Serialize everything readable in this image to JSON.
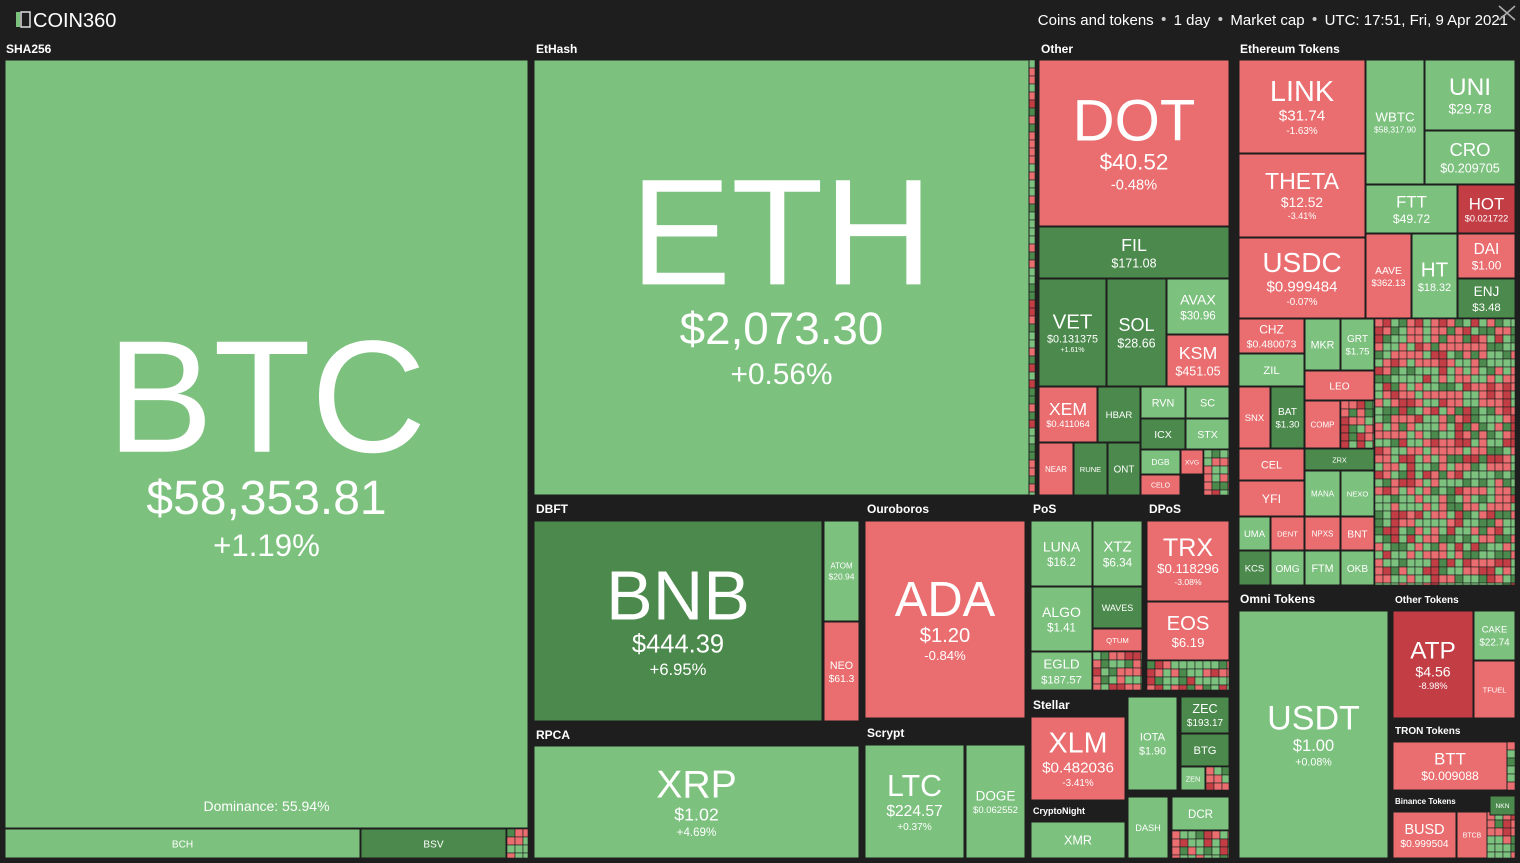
{
  "header": {
    "logo": "COIN360",
    "items": [
      "Coins and tokens",
      "1 day",
      "Market cap",
      "UTC: 17:51, Fri, 9 Apr 2021"
    ]
  },
  "groups": [
    {
      "name": "SHA256",
      "tiles": [
        {
          "symbol": "BTC",
          "price": "$58,353.81",
          "change": "+1.19%",
          "note": "Dominance: 55.94%"
        },
        {
          "symbol": "BCH"
        },
        {
          "symbol": "BSV"
        }
      ]
    },
    {
      "name": "EtHash",
      "tiles": [
        {
          "symbol": "ETH",
          "price": "$2,073.30",
          "change": "+0.56%"
        }
      ]
    },
    {
      "name": "Other",
      "tiles": [
        {
          "symbol": "DOT",
          "price": "$40.52",
          "change": "-0.48%"
        },
        {
          "symbol": "FIL",
          "price": "$171.08"
        },
        {
          "symbol": "VET",
          "price": "$0.131375",
          "change": "+1.61%"
        },
        {
          "symbol": "SOL",
          "price": "$28.66"
        },
        {
          "symbol": "AVAX",
          "price": "$30.96"
        },
        {
          "symbol": "KSM",
          "price": "$451.05"
        },
        {
          "symbol": "XEM",
          "price": "$0.411064"
        },
        {
          "symbol": "HBAR"
        },
        {
          "symbol": "RVN"
        },
        {
          "symbol": "SC"
        },
        {
          "symbol": "ICX"
        },
        {
          "symbol": "STX"
        },
        {
          "symbol": "NEAR"
        },
        {
          "symbol": "RUNE"
        },
        {
          "symbol": "ONT"
        },
        {
          "symbol": "DGB"
        },
        {
          "symbol": "XVG"
        },
        {
          "symbol": "CELO"
        }
      ]
    },
    {
      "name": "Ethereum Tokens",
      "tiles": [
        {
          "symbol": "LINK",
          "price": "$31.74",
          "change": "-1.63%"
        },
        {
          "symbol": "WBTC",
          "price": "$58,317.90"
        },
        {
          "symbol": "UNI",
          "price": "$29.78"
        },
        {
          "symbol": "CRO",
          "price": "$0.209705"
        },
        {
          "symbol": "THETA",
          "price": "$12.52",
          "change": "-3.41%"
        },
        {
          "symbol": "FTT",
          "price": "$49.72"
        },
        {
          "symbol": "HOT",
          "price": "$0.021722"
        },
        {
          "symbol": "AAVE",
          "price": "$362.13"
        },
        {
          "symbol": "HT",
          "price": "$18.32"
        },
        {
          "symbol": "DAI",
          "price": "$1.00"
        },
        {
          "symbol": "ENJ",
          "price": "$3.48"
        },
        {
          "symbol": "USDC",
          "price": "$0.999484",
          "change": "-0.07%"
        },
        {
          "symbol": "CHZ",
          "price": "$0.480073"
        },
        {
          "symbol": "ZIL"
        },
        {
          "symbol": "MKR"
        },
        {
          "symbol": "GRT",
          "price": "$1.75"
        },
        {
          "symbol": "LEO"
        },
        {
          "symbol": "SNX"
        },
        {
          "symbol": "BAT",
          "price": "$1.30"
        },
        {
          "symbol": "COMP"
        },
        {
          "symbol": "CEL"
        },
        {
          "symbol": "YFI"
        },
        {
          "symbol": "ZRX"
        },
        {
          "symbol": "MANA"
        },
        {
          "symbol": "NEXO"
        },
        {
          "symbol": "UMA"
        },
        {
          "symbol": "DENT"
        },
        {
          "symbol": "NPXS"
        },
        {
          "symbol": "BNT"
        },
        {
          "symbol": "KCS"
        },
        {
          "symbol": "OMG"
        },
        {
          "symbol": "FTM"
        },
        {
          "symbol": "OKB"
        }
      ]
    },
    {
      "name": "DBFT",
      "tiles": [
        {
          "symbol": "BNB",
          "price": "$444.39",
          "change": "+6.95%"
        },
        {
          "symbol": "ATOM",
          "price": "$20.94"
        },
        {
          "symbol": "NEO",
          "price": "$61.3"
        }
      ]
    },
    {
      "name": "Ouroboros",
      "tiles": [
        {
          "symbol": "ADA",
          "price": "$1.20",
          "change": "-0.84%"
        }
      ]
    },
    {
      "name": "PoS",
      "tiles": [
        {
          "symbol": "LUNA",
          "price": "$16.2"
        },
        {
          "symbol": "XTZ",
          "price": "$6.34"
        },
        {
          "symbol": "ALGO",
          "price": "$1.41"
        },
        {
          "symbol": "WAVES"
        },
        {
          "symbol": "QTUM"
        },
        {
          "symbol": "EGLD",
          "price": "$187.57"
        }
      ]
    },
    {
      "name": "DPoS",
      "tiles": [
        {
          "symbol": "TRX",
          "price": "$0.118296",
          "change": "-3.08%"
        },
        {
          "symbol": "EOS",
          "price": "$6.19"
        }
      ]
    },
    {
      "name": "RPCA",
      "tiles": [
        {
          "symbol": "XRP",
          "price": "$1.02",
          "change": "+4.69%"
        }
      ]
    },
    {
      "name": "Scrypt",
      "tiles": [
        {
          "symbol": "LTC",
          "price": "$224.57",
          "change": "+0.37%"
        },
        {
          "symbol": "DOGE",
          "price": "$0.062552"
        }
      ]
    },
    {
      "name": "Stellar",
      "tiles": [
        {
          "symbol": "XLM",
          "price": "$0.482036",
          "change": "-3.41%"
        }
      ]
    },
    {
      "tiles": [
        {
          "symbol": "IOTA",
          "price": "$1.90"
        },
        {
          "symbol": "ZEC",
          "price": "$193.17"
        },
        {
          "symbol": "BTG"
        },
        {
          "symbol": "ZEN"
        },
        {
          "symbol": "DASH"
        },
        {
          "symbol": "DCR"
        }
      ]
    },
    {
      "name": "CryptoNight",
      "tiles": [
        {
          "symbol": "XMR"
        }
      ]
    },
    {
      "name": "Omni Tokens",
      "tiles": [
        {
          "symbol": "USDT",
          "price": "$1.00",
          "change": "+0.08%"
        }
      ]
    },
    {
      "name": "Other Tokens",
      "tiles": [
        {
          "symbol": "ATP",
          "price": "$4.56",
          "change": "-8.98%"
        },
        {
          "symbol": "CAKE",
          "price": "$22.74"
        },
        {
          "symbol": "TFUEL"
        }
      ]
    },
    {
      "name": "TRON Tokens",
      "tiles": [
        {
          "symbol": "BTT",
          "price": "$0.009088"
        }
      ]
    },
    {
      "name": "Binance Tokens",
      "tiles": [
        {
          "symbol": "BUSD",
          "price": "$0.999504"
        },
        {
          "symbol": "BTCB"
        },
        {
          "symbol": "NKN"
        }
      ]
    }
  ]
}
